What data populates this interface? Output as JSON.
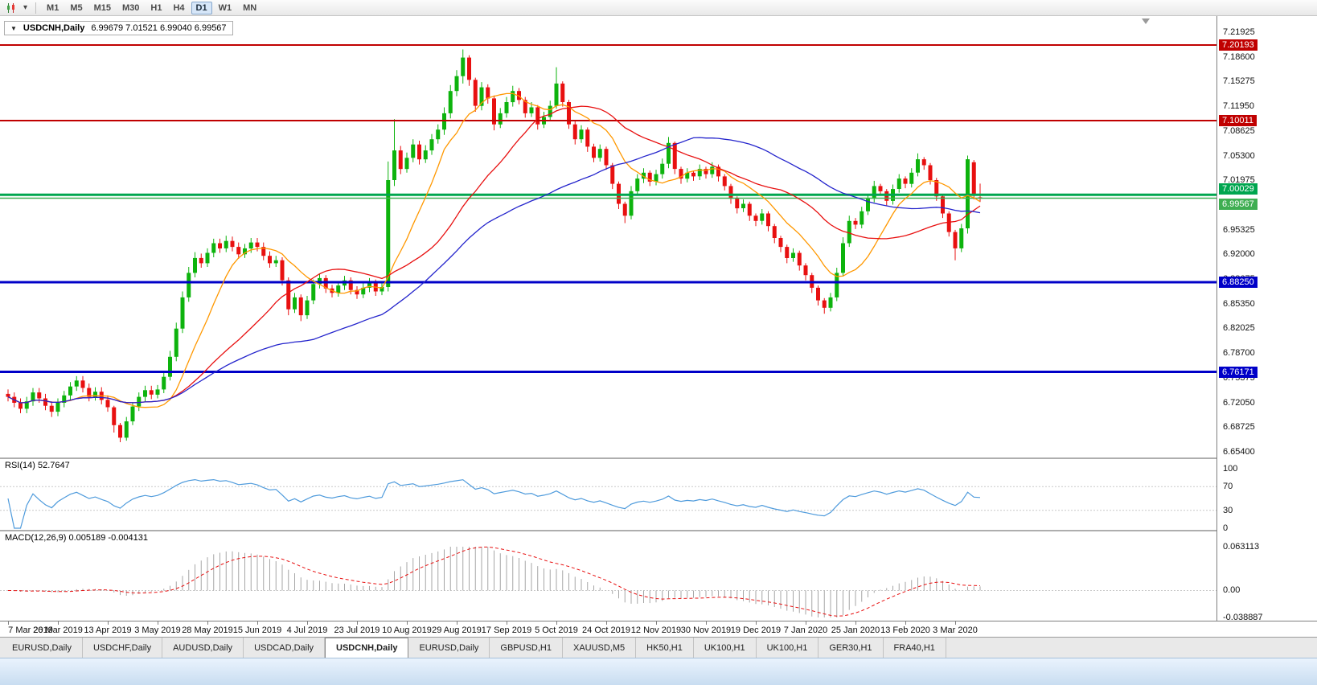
{
  "toolbar": {
    "timeframes": [
      "M1",
      "M5",
      "M15",
      "M30",
      "H1",
      "H4",
      "D1",
      "W1",
      "MN"
    ],
    "active_timeframe": "D1"
  },
  "chart_header": {
    "collapse_arrow": "▼",
    "symbol": "USDCNH,Daily",
    "ohlc": "6.99679 7.01521 6.99040 6.99567"
  },
  "indicators": {
    "rsi_label": "RSI(14)",
    "rsi_value": "52.7647",
    "macd_label": "MACD(12,26,9)",
    "macd_values": "0.005189 -0.004131"
  },
  "axes": {
    "price_ticks": [
      "7.21925",
      "7.18600",
      "7.15275",
      "7.11950",
      "7.08625",
      "7.05300",
      "7.01975",
      "6.98650",
      "6.95325",
      "6.92000",
      "6.88675",
      "6.85350",
      "6.82025",
      "6.78700",
      "6.75375",
      "6.72050",
      "6.68725",
      "6.65400"
    ],
    "rsi_ticks": [
      "100",
      "70",
      "30",
      "0"
    ],
    "macd_ticks": [
      "0.063113",
      "0.00",
      "-0.038887"
    ]
  },
  "price_badges": [
    {
      "label": "7.20193",
      "color": "#c00000",
      "align": "center"
    },
    {
      "label": "7.10011",
      "color": "#c00000",
      "align": "center"
    },
    {
      "label": "7.00029",
      "color": "#00a64f",
      "align": "above"
    },
    {
      "label": "6.99567",
      "color": "#3fae52",
      "align": "below"
    },
    {
      "label": "6.88250",
      "color": "#0000c8",
      "align": "center"
    },
    {
      "label": "6.76171",
      "color": "#0000c8",
      "align": "center"
    }
  ],
  "tabs": {
    "items": [
      "EURUSD,Daily",
      "USDCHF,Daily",
      "AUDUSD,Daily",
      "USDCAD,Daily",
      "USDCNH,Daily",
      "EURUSD,Daily",
      "GBPUSD,H1",
      "XAUUSD,M5",
      "HK50,H1",
      "UK100,H1",
      "UK100,H1",
      "GER30,H1",
      "FRA40,H1"
    ],
    "active_index": 4
  },
  "chart_data": [
    {
      "type": "candlestick",
      "title": "USDCNH,Daily",
      "ylim": [
        6.6453,
        7.2409
      ],
      "bars_per_label": 8,
      "x_labels": [
        "7 Mar 2019",
        "26 Mar 2019",
        "13 Apr 2019",
        "3 May 2019",
        "28 May 2019",
        "15 Jun 2019",
        "4 Jul 2019",
        "23 Jul 2019",
        "10 Aug 2019",
        "29 Aug 2019",
        "17 Sep 2019",
        "5 Oct 2019",
        "24 Oct 2019",
        "12 Nov 2019",
        "30 Nov 2019",
        "19 Dec 2019",
        "7 Jan 2020",
        "25 Jan 2020",
        "13 Feb 2020",
        "3 Mar 2020"
      ],
      "bull_color": "#0db30d",
      "bear_color": "#e81010",
      "current_price": 6.99567,
      "current_price_color": "#3fae52",
      "hlines": [
        {
          "price": 7.20193,
          "color": "#c00000",
          "width": 2
        },
        {
          "price": 7.10011,
          "color": "#c00000",
          "width": 2
        },
        {
          "price": 7.00029,
          "color": "#00a64f",
          "width": 3
        },
        {
          "price": 6.8825,
          "color": "#0000c8",
          "width": 3
        },
        {
          "price": 6.76171,
          "color": "#0000c8",
          "width": 3
        }
      ],
      "overlays": [
        {
          "name": "ma-fast",
          "period": 10,
          "color": "#ff9800"
        },
        {
          "name": "ma-mid",
          "period": 25,
          "color": "#e81010"
        },
        {
          "name": "ma-slow",
          "period": 50,
          "color": "#2424cc"
        }
      ],
      "ohlc": {
        "open": [
          6.732,
          6.728,
          6.72,
          6.712,
          6.722,
          6.734,
          6.726,
          6.716,
          6.708,
          6.72,
          6.73,
          6.742,
          6.75,
          6.74,
          6.728,
          6.735,
          6.724,
          6.714,
          6.69,
          6.673,
          6.695,
          6.715,
          6.728,
          6.737,
          6.731,
          6.738,
          6.755,
          6.782,
          6.82,
          6.862,
          6.895,
          6.915,
          6.908,
          6.922,
          6.935,
          6.928,
          6.938,
          6.93,
          6.92,
          6.928,
          6.936,
          6.93,
          6.918,
          6.908,
          6.912,
          6.885,
          6.846,
          6.862,
          6.838,
          6.858,
          6.88,
          6.888,
          6.874,
          6.868,
          6.878,
          6.885,
          6.872,
          6.866,
          6.875,
          6.882,
          6.87,
          6.876,
          7.02,
          7.06,
          7.035,
          7.05,
          7.068,
          7.048,
          7.06,
          7.075,
          7.088,
          7.11,
          7.14,
          7.16,
          7.185,
          7.155,
          7.12,
          7.145,
          7.13,
          7.095,
          7.11,
          7.125,
          7.14,
          7.128,
          7.11,
          7.118,
          7.095,
          7.105,
          7.12,
          7.15,
          7.125,
          7.095,
          7.075,
          7.088,
          7.065,
          7.05,
          7.062,
          7.04,
          7.015,
          6.988,
          6.972,
          7.005,
          7.022,
          7.03,
          7.018,
          7.028,
          7.042,
          7.07,
          7.035,
          7.022,
          7.03,
          7.025,
          7.035,
          7.028,
          7.038,
          7.025,
          7.012,
          6.995,
          6.982,
          6.988,
          6.972,
          6.965,
          6.975,
          6.958,
          6.942,
          6.93,
          6.915,
          6.922,
          6.905,
          6.892,
          6.875,
          6.858,
          6.848,
          6.862,
          6.895,
          6.935,
          6.965,
          6.96,
          6.978,
          6.995,
          7.012,
          7.005,
          6.992,
          7.008,
          7.022,
          7.015,
          7.03,
          7.048,
          7.04,
          7.02,
          6.998,
          6.975,
          6.95,
          6.928,
          6.955,
          7.044,
          6.99679
        ],
        "high": [
          6.738,
          6.734,
          6.726,
          6.728,
          6.74,
          6.74,
          6.732,
          6.722,
          6.726,
          6.736,
          6.748,
          6.756,
          6.756,
          6.746,
          6.741,
          6.741,
          6.73,
          6.716,
          6.693,
          6.701,
          6.721,
          6.734,
          6.743,
          6.743,
          6.744,
          6.761,
          6.79,
          6.828,
          6.87,
          6.903,
          6.923,
          6.921,
          6.928,
          6.941,
          6.941,
          6.945,
          6.944,
          6.936,
          6.934,
          6.942,
          6.942,
          6.936,
          6.924,
          6.918,
          6.916,
          6.889,
          6.868,
          6.866,
          6.864,
          6.886,
          6.894,
          6.892,
          6.879,
          6.884,
          6.891,
          6.889,
          6.877,
          6.881,
          6.888,
          6.886,
          6.882,
          7.045,
          7.102,
          7.066,
          7.057,
          7.075,
          7.073,
          7.067,
          7.082,
          7.095,
          7.118,
          7.148,
          7.168,
          7.196,
          7.188,
          7.158,
          7.152,
          7.149,
          7.134,
          7.117,
          7.132,
          7.147,
          7.144,
          7.132,
          7.125,
          7.121,
          7.112,
          7.127,
          7.172,
          7.153,
          7.128,
          7.099,
          7.094,
          7.091,
          7.069,
          7.068,
          7.065,
          7.043,
          7.018,
          6.991,
          7.012,
          7.028,
          7.036,
          7.033,
          7.034,
          7.049,
          7.078,
          7.072,
          7.038,
          7.036,
          7.033,
          7.041,
          7.038,
          7.044,
          7.041,
          7.028,
          7.015,
          6.998,
          6.994,
          6.991,
          6.975,
          6.981,
          6.978,
          6.961,
          6.945,
          6.933,
          6.928,
          6.925,
          6.908,
          6.895,
          6.878,
          6.861,
          6.868,
          6.902,
          6.943,
          6.972,
          6.969,
          6.984,
          7.001,
          7.019,
          7.015,
          7.008,
          7.014,
          7.028,
          7.025,
          7.036,
          7.056,
          7.051,
          7.043,
          7.023,
          7.001,
          6.978,
          6.953,
          6.961,
          7.053,
          7.047,
          7.01521
        ],
        "low": [
          6.722,
          6.714,
          6.706,
          6.706,
          6.716,
          6.72,
          6.71,
          6.701,
          6.702,
          6.714,
          6.724,
          6.736,
          6.734,
          6.722,
          6.723,
          6.718,
          6.708,
          6.68,
          6.667,
          6.669,
          6.69,
          6.709,
          6.722,
          6.725,
          6.726,
          6.733,
          6.75,
          6.776,
          6.814,
          6.856,
          6.889,
          6.902,
          6.903,
          6.916,
          6.922,
          6.923,
          6.924,
          6.914,
          6.915,
          6.922,
          6.924,
          6.912,
          6.902,
          6.903,
          6.878,
          6.838,
          6.841,
          6.83,
          6.833,
          6.853,
          6.874,
          6.868,
          6.862,
          6.863,
          6.872,
          6.866,
          6.86,
          6.861,
          6.869,
          6.864,
          6.865,
          6.87,
          7.012,
          7.028,
          7.03,
          7.044,
          7.041,
          7.043,
          7.054,
          7.069,
          7.081,
          7.103,
          7.133,
          7.15,
          7.147,
          7.112,
          7.114,
          7.123,
          7.087,
          7.09,
          7.104,
          7.119,
          7.122,
          7.104,
          7.105,
          7.088,
          7.09,
          7.1,
          7.116,
          7.119,
          7.089,
          7.068,
          7.07,
          7.058,
          7.044,
          7.045,
          7.034,
          7.008,
          6.981,
          6.962,
          6.967,
          7.0,
          7.016,
          7.012,
          7.013,
          7.022,
          7.036,
          7.028,
          7.015,
          7.017,
          7.019,
          7.02,
          7.022,
          7.023,
          7.018,
          7.006,
          6.988,
          6.975,
          6.977,
          6.965,
          6.958,
          6.96,
          6.951,
          6.935,
          6.923,
          6.908,
          6.91,
          6.898,
          6.885,
          6.868,
          6.851,
          6.84,
          6.843,
          6.857,
          6.89,
          6.93,
          6.954,
          6.955,
          6.973,
          6.99,
          6.999,
          6.986,
          6.987,
          7.003,
          7.009,
          7.01,
          7.025,
          7.034,
          7.014,
          6.992,
          6.969,
          6.944,
          6.912,
          6.923,
          6.948,
          6.994,
          6.9904
        ],
        "close": [
          6.728,
          6.72,
          6.712,
          6.722,
          6.734,
          6.726,
          6.716,
          6.708,
          6.72,
          6.73,
          6.742,
          6.75,
          6.74,
          6.728,
          6.735,
          6.724,
          6.714,
          6.69,
          6.673,
          6.695,
          6.715,
          6.728,
          6.737,
          6.731,
          6.738,
          6.755,
          6.782,
          6.82,
          6.862,
          6.895,
          6.915,
          6.908,
          6.922,
          6.935,
          6.928,
          6.938,
          6.93,
          6.92,
          6.928,
          6.936,
          6.93,
          6.918,
          6.908,
          6.912,
          6.885,
          6.846,
          6.862,
          6.838,
          6.858,
          6.88,
          6.888,
          6.874,
          6.868,
          6.878,
          6.885,
          6.872,
          6.866,
          6.875,
          6.882,
          6.87,
          6.876,
          7.02,
          7.06,
          7.035,
          7.05,
          7.068,
          7.048,
          7.06,
          7.075,
          7.088,
          7.11,
          7.14,
          7.16,
          7.185,
          7.155,
          7.12,
          7.145,
          7.13,
          7.095,
          7.11,
          7.125,
          7.14,
          7.128,
          7.11,
          7.118,
          7.095,
          7.105,
          7.12,
          7.15,
          7.125,
          7.095,
          7.075,
          7.088,
          7.065,
          7.05,
          7.062,
          7.04,
          7.015,
          6.988,
          6.972,
          7.005,
          7.022,
          7.03,
          7.018,
          7.028,
          7.042,
          7.07,
          7.035,
          7.022,
          7.03,
          7.025,
          7.035,
          7.028,
          7.038,
          7.025,
          7.012,
          6.995,
          6.982,
          6.988,
          6.972,
          6.965,
          6.975,
          6.958,
          6.942,
          6.93,
          6.915,
          6.922,
          6.905,
          6.892,
          6.875,
          6.858,
          6.848,
          6.862,
          6.895,
          6.935,
          6.965,
          6.96,
          6.978,
          6.995,
          7.012,
          7.005,
          6.992,
          7.008,
          7.022,
          7.015,
          7.03,
          7.048,
          7.04,
          7.02,
          6.998,
          6.975,
          6.95,
          6.928,
          6.955,
          7.048,
          7.0,
          6.99567
        ]
      }
    },
    {
      "type": "line",
      "name": "RSI(14)",
      "period": 14,
      "current_value": 52.7647,
      "ylim": [
        0,
        100
      ],
      "levels": [
        70,
        30
      ],
      "color": "#4f9bdc",
      "derived_from": "chart_data.0.ohlc.close"
    },
    {
      "type": "macd_histogram",
      "name": "MACD(12,26,9)",
      "fast": 12,
      "slow": 26,
      "signal": 9,
      "main_value": 0.005189,
      "signal_value": -0.004131,
      "ylim": [
        -0.038887,
        0.063113
      ],
      "hist_color": "#a6a6a6",
      "signal_color": "#e81010",
      "derived_from": "chart_data.0.ohlc.close"
    }
  ]
}
